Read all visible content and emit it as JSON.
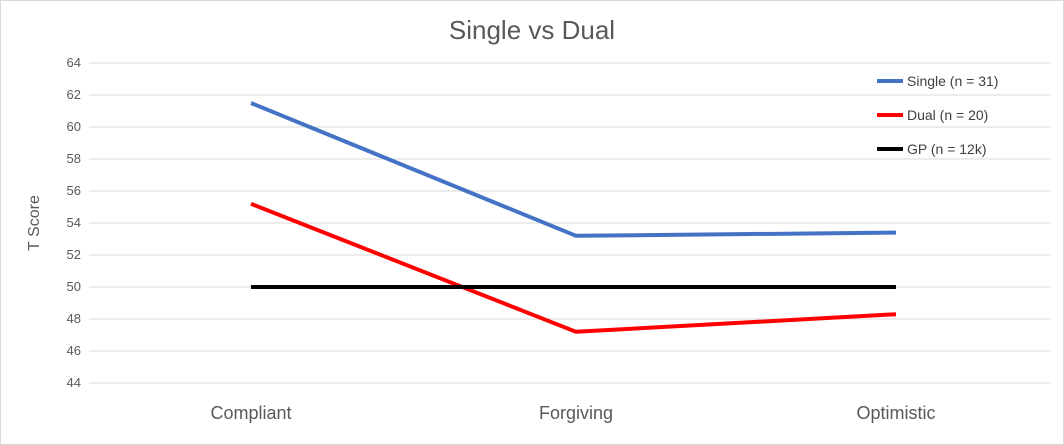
{
  "chart_data": {
    "type": "line",
    "title": "Single vs Dual",
    "xlabel": "",
    "ylabel": "T Score",
    "categories": [
      "Compliant",
      "Forgiving",
      "Optimistic"
    ],
    "ylim": [
      44,
      64
    ],
    "yticks": [
      44,
      46,
      48,
      50,
      52,
      54,
      56,
      58,
      60,
      62,
      64
    ],
    "grid": true,
    "legend_position": "top-right",
    "series": [
      {
        "name": "Single (n = 31)",
        "values": [
          61.5,
          53.2,
          53.4
        ],
        "color": "#4472c4"
      },
      {
        "name": "Dual (n = 20)",
        "values": [
          55.2,
          47.2,
          48.3
        ],
        "color": "#ff0000"
      },
      {
        "name": "GP (n = 12k)",
        "values": [
          50,
          50,
          50
        ],
        "color": "#000000"
      }
    ]
  }
}
